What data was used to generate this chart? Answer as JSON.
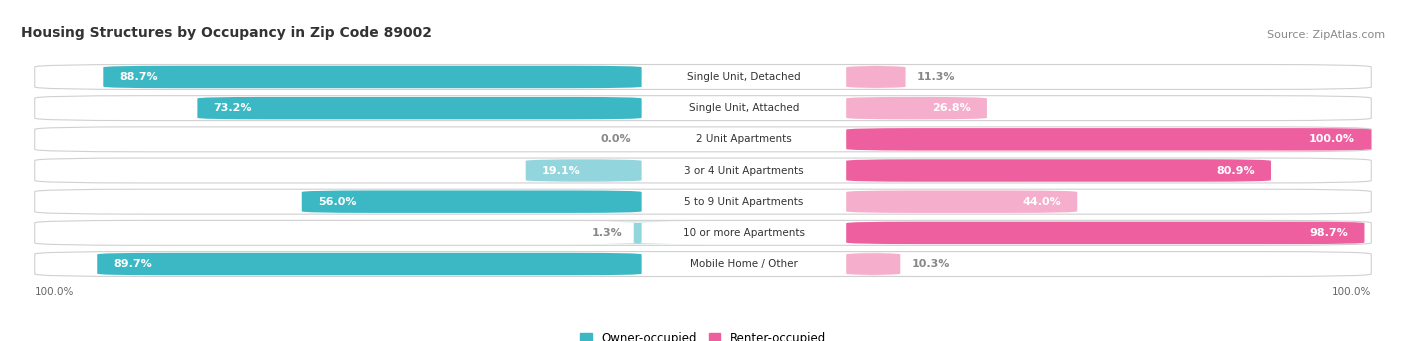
{
  "title": "Housing Structures by Occupancy in Zip Code 89002",
  "source": "Source: ZipAtlas.com",
  "categories": [
    "Single Unit, Detached",
    "Single Unit, Attached",
    "2 Unit Apartments",
    "3 or 4 Unit Apartments",
    "5 to 9 Unit Apartments",
    "10 or more Apartments",
    "Mobile Home / Other"
  ],
  "owner_pct": [
    88.7,
    73.2,
    0.0,
    19.1,
    56.0,
    1.3,
    89.7
  ],
  "renter_pct": [
    11.3,
    26.8,
    100.0,
    80.9,
    44.0,
    98.7,
    10.3
  ],
  "owner_color_dark": "#3BB8C3",
  "owner_color_light": "#93D5DC",
  "renter_color_dark": "#EE5FA0",
  "renter_color_light": "#F5AECB",
  "bg_color": "#ffffff",
  "row_bg_color": "#e8e8e8",
  "title_fontsize": 10,
  "source_fontsize": 8,
  "pct_fontsize": 8,
  "cat_fontsize": 7.5,
  "bar_height": 0.72,
  "label_color_inside": "#ffffff",
  "label_color_outside": "#888888",
  "legend_owner": "Owner-occupied",
  "legend_renter": "Renter-occupied",
  "x_axis_label": "100.0%"
}
